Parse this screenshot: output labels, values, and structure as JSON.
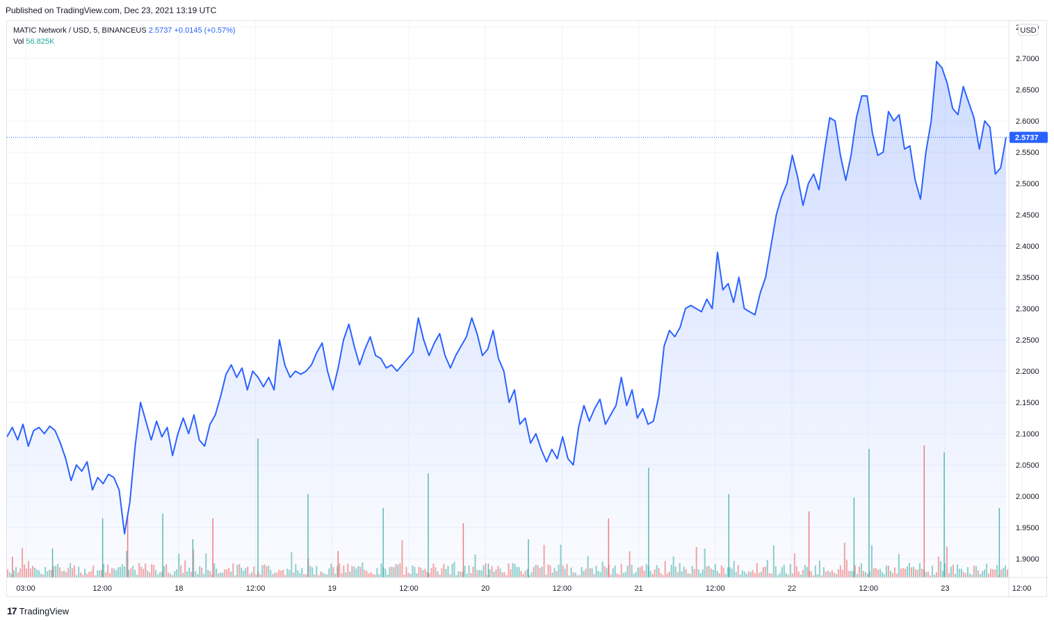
{
  "header": {
    "published": "Published on TradingView.com, Dec 23, 2021 13:19 UTC"
  },
  "legend": {
    "symbol": "MATIC Network / USD, 5, BINANCEUS",
    "last": "2.5737",
    "change": "+0.0145",
    "change_pct": "(+0.57%)",
    "vol_label": "Vol",
    "vol_value": "56.825K"
  },
  "currency_label": "USD",
  "last_price_label": "2.5737",
  "brand": {
    "logo": "17",
    "name": "TradingView"
  },
  "colors": {
    "line": "#2962ff",
    "vol_up": "#26a69a",
    "vol_down": "#ef5350",
    "grid": "#f0f3fa"
  },
  "chart_data": {
    "type": "area",
    "title": "MATIC Network / USD, 5, BINANCEUS",
    "xlabel": "",
    "ylabel": "",
    "x_ticks": [
      "03:00",
      "12:00",
      "18",
      "12:00",
      "19",
      "12:00",
      "20",
      "12:00",
      "21",
      "12:00",
      "22",
      "12:00",
      "23",
      "12:00"
    ],
    "y_ticks": [
      "2.7500",
      "2.7000",
      "2.6500",
      "2.6000",
      "2.5500",
      "2.5000",
      "2.4500",
      "2.4000",
      "2.3500",
      "2.3000",
      "2.2500",
      "2.2000",
      "2.1500",
      "2.1000",
      "2.0500",
      "2.0000",
      "1.9500",
      "1.9000"
    ],
    "ylim": [
      1.87,
      2.76
    ],
    "grid": true,
    "series": [
      {
        "values": [
          2.095,
          2.11,
          2.09,
          2.115,
          2.08,
          2.105,
          2.11,
          2.1,
          2.112,
          2.105,
          2.085,
          2.06,
          2.025,
          2.05,
          2.04,
          2.055,
          2.01,
          2.03,
          2.02,
          2.035,
          2.03,
          2.01,
          1.94,
          1.99,
          2.08,
          2.15,
          2.12,
          2.09,
          2.12,
          2.095,
          2.11,
          2.065,
          2.1,
          2.125,
          2.1,
          2.13,
          2.09,
          2.08,
          2.115,
          2.13,
          2.16,
          2.195,
          2.21,
          2.19,
          2.205,
          2.17,
          2.2,
          2.19,
          2.175,
          2.19,
          2.17,
          2.25,
          2.21,
          2.19,
          2.2,
          2.195,
          2.2,
          2.21,
          2.23,
          2.245,
          2.2,
          2.17,
          2.205,
          2.25,
          2.275,
          2.24,
          2.21,
          2.235,
          2.255,
          2.225,
          2.22,
          2.205,
          2.21,
          2.2,
          2.21,
          2.22,
          2.23,
          2.285,
          2.25,
          2.225,
          2.245,
          2.26,
          2.225,
          2.205,
          2.225,
          2.24,
          2.255,
          2.285,
          2.26,
          2.225,
          2.235,
          2.265,
          2.22,
          2.2,
          2.15,
          2.17,
          2.115,
          2.125,
          2.085,
          2.1,
          2.075,
          2.055,
          2.075,
          2.06,
          2.095,
          2.06,
          2.05,
          2.11,
          2.145,
          2.12,
          2.14,
          2.155,
          2.115,
          2.13,
          2.145,
          2.19,
          2.145,
          2.17,
          2.125,
          2.14,
          2.115,
          2.12,
          2.16,
          2.24,
          2.265,
          2.255,
          2.27,
          2.3,
          2.305,
          2.3,
          2.295,
          2.315,
          2.3,
          2.39,
          2.33,
          2.34,
          2.31,
          2.35,
          2.3,
          2.295,
          2.29,
          2.325,
          2.35,
          2.4,
          2.45,
          2.48,
          2.5,
          2.545,
          2.51,
          2.465,
          2.5,
          2.515,
          2.49,
          2.55,
          2.605,
          2.6,
          2.545,
          2.505,
          2.545,
          2.605,
          2.64,
          2.64,
          2.58,
          2.545,
          2.55,
          2.615,
          2.6,
          2.61,
          2.555,
          2.56,
          2.505,
          2.475,
          2.55,
          2.6,
          2.695,
          2.685,
          2.66,
          2.62,
          2.61,
          2.655,
          2.63,
          2.605,
          2.555,
          2.6,
          2.59,
          2.515,
          2.525,
          2.5737
        ]
      }
    ],
    "volume": [
      {
        "x": 0.005,
        "v": 30
      },
      {
        "x": 0.045,
        "v": 42
      },
      {
        "x": 0.095,
        "v": 85
      },
      {
        "x": 0.12,
        "v": 90
      },
      {
        "x": 0.155,
        "v": 92
      },
      {
        "x": 0.185,
        "v": 55
      },
      {
        "x": 0.205,
        "v": 85
      },
      {
        "x": 0.25,
        "v": 200
      },
      {
        "x": 0.3,
        "v": 120
      },
      {
        "x": 0.33,
        "v": 38
      },
      {
        "x": 0.375,
        "v": 100
      },
      {
        "x": 0.42,
        "v": 150
      },
      {
        "x": 0.455,
        "v": 78
      },
      {
        "x": 0.48,
        "v": 20
      },
      {
        "x": 0.52,
        "v": 55
      },
      {
        "x": 0.6,
        "v": 85
      },
      {
        "x": 0.64,
        "v": 158
      },
      {
        "x": 0.72,
        "v": 120
      },
      {
        "x": 0.8,
        "v": 95
      },
      {
        "x": 0.845,
        "v": 115
      },
      {
        "x": 0.86,
        "v": 185
      },
      {
        "x": 0.915,
        "v": 190
      },
      {
        "x": 0.935,
        "v": 180
      },
      {
        "x": 0.99,
        "v": 100
      }
    ]
  }
}
